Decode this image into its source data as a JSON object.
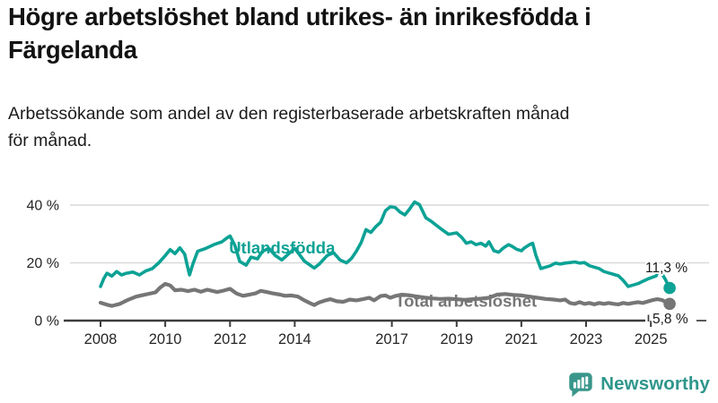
{
  "title": "Högre arbetslöshet bland utrikes- än inrikesfödda i\nFärgelanda",
  "subtitle": "Arbetssökande som andel av den registerbaserade arbetskraften månad\nför månad.",
  "branding": {
    "name": "Newsworthy",
    "icon": "bar-chart-speech-bubble-icon",
    "color": "#2e968b"
  },
  "colors": {
    "foreign_born_line": "#0ca295",
    "total_line": "#767676",
    "grid": "#d9d9d9",
    "axis": "#3d3d3d",
    "tick_text": "#262626",
    "value_text": "#1a1a1a"
  },
  "chart_data": {
    "type": "line",
    "unit": "%",
    "grid": "horizontal-only",
    "legend_position": "inline-labels",
    "x_tick_labels": [
      2008,
      2010,
      2012,
      2014,
      2017,
      2019,
      2021,
      2023,
      2025
    ],
    "y_ticks": [
      {
        "value": 0,
        "label": "0 %"
      },
      {
        "value": 20,
        "label": "20 %"
      },
      {
        "value": 40,
        "label": "40 %"
      }
    ],
    "ylim": [
      0,
      44
    ],
    "xlim": [
      2007.0,
      2026.8
    ],
    "series": [
      {
        "name": "Utlandsfödda",
        "color": "#0ca295",
        "end_value": 11.3,
        "end_value_label": "11,3 %",
        "label_anchor": {
          "x": 2011.97,
          "y": 25.2
        },
        "points": [
          [
            2008.0,
            11.8
          ],
          [
            2008.1,
            14.5
          ],
          [
            2008.2,
            16.4
          ],
          [
            2008.35,
            15.4
          ],
          [
            2008.5,
            17.0
          ],
          [
            2008.65,
            15.8
          ],
          [
            2008.8,
            16.4
          ],
          [
            2009.0,
            16.8
          ],
          [
            2009.2,
            15.8
          ],
          [
            2009.4,
            17.2
          ],
          [
            2009.6,
            18.0
          ],
          [
            2009.8,
            20.0
          ],
          [
            2010.0,
            22.5
          ],
          [
            2010.15,
            24.6
          ],
          [
            2010.3,
            23.2
          ],
          [
            2010.45,
            25.2
          ],
          [
            2010.6,
            23.0
          ],
          [
            2010.68,
            19.0
          ],
          [
            2010.75,
            15.8
          ],
          [
            2010.85,
            19.5
          ],
          [
            2011.0,
            24.0
          ],
          [
            2011.25,
            25.0
          ],
          [
            2011.5,
            26.3
          ],
          [
            2011.75,
            27.3
          ],
          [
            2011.9,
            28.6
          ],
          [
            2012.0,
            29.3
          ],
          [
            2012.15,
            26.0
          ],
          [
            2012.3,
            20.5
          ],
          [
            2012.5,
            19.2
          ],
          [
            2012.65,
            22.0
          ],
          [
            2012.85,
            21.4
          ],
          [
            2013.0,
            24.0
          ],
          [
            2013.2,
            25.0
          ],
          [
            2013.4,
            22.5
          ],
          [
            2013.6,
            21.0
          ],
          [
            2013.8,
            23.0
          ],
          [
            2014.0,
            25.0
          ],
          [
            2014.3,
            20.6
          ],
          [
            2014.6,
            18.2
          ],
          [
            2014.75,
            19.5
          ],
          [
            2015.0,
            22.5
          ],
          [
            2015.2,
            23.5
          ],
          [
            2015.4,
            21.0
          ],
          [
            2015.6,
            20.0
          ],
          [
            2015.75,
            21.5
          ],
          [
            2015.9,
            24.0
          ],
          [
            2016.05,
            27.0
          ],
          [
            2016.2,
            31.5
          ],
          [
            2016.35,
            30.5
          ],
          [
            2016.5,
            32.5
          ],
          [
            2016.65,
            34.0
          ],
          [
            2016.8,
            38.0
          ],
          [
            2016.95,
            39.4
          ],
          [
            2017.1,
            39.2
          ],
          [
            2017.25,
            37.6
          ],
          [
            2017.4,
            36.6
          ],
          [
            2017.55,
            38.7
          ],
          [
            2017.7,
            41.1
          ],
          [
            2017.85,
            40.2
          ],
          [
            2018.05,
            35.6
          ],
          [
            2018.2,
            34.5
          ],
          [
            2018.5,
            31.9
          ],
          [
            2018.75,
            29.9
          ],
          [
            2019.0,
            30.4
          ],
          [
            2019.15,
            28.9
          ],
          [
            2019.3,
            26.8
          ],
          [
            2019.45,
            27.3
          ],
          [
            2019.6,
            26.3
          ],
          [
            2019.75,
            26.8
          ],
          [
            2019.9,
            25.8
          ],
          [
            2020.0,
            27.3
          ],
          [
            2020.15,
            24.2
          ],
          [
            2020.3,
            23.7
          ],
          [
            2020.45,
            25.2
          ],
          [
            2020.6,
            26.3
          ],
          [
            2020.7,
            25.8
          ],
          [
            2020.85,
            24.7
          ],
          [
            2021.0,
            24.2
          ],
          [
            2021.1,
            25.2
          ],
          [
            2021.25,
            26.3
          ],
          [
            2021.35,
            26.8
          ],
          [
            2021.45,
            22.6
          ],
          [
            2021.6,
            18.0
          ],
          [
            2021.75,
            18.5
          ],
          [
            2021.9,
            19.0
          ],
          [
            2022.05,
            19.9
          ],
          [
            2022.2,
            19.6
          ],
          [
            2022.35,
            19.9
          ],
          [
            2022.5,
            20.1
          ],
          [
            2022.65,
            20.3
          ],
          [
            2022.8,
            19.9
          ],
          [
            2022.95,
            20.1
          ],
          [
            2023.1,
            19.0
          ],
          [
            2023.25,
            18.5
          ],
          [
            2023.4,
            18.0
          ],
          [
            2023.55,
            17.0
          ],
          [
            2023.7,
            16.5
          ],
          [
            2023.85,
            16.0
          ],
          [
            2024.0,
            15.5
          ],
          [
            2024.15,
            13.9
          ],
          [
            2024.3,
            11.8
          ],
          [
            2024.45,
            12.3
          ],
          [
            2024.6,
            12.8
          ],
          [
            2024.75,
            13.6
          ],
          [
            2024.9,
            14.4
          ],
          [
            2025.05,
            15.0
          ],
          [
            2025.15,
            15.4
          ],
          [
            2025.3,
            17.0
          ],
          [
            2025.44,
            14.4
          ],
          [
            2025.58,
            11.3
          ]
        ]
      },
      {
        "name": "Total arbetslöshet",
        "color": "#767676",
        "end_value": 5.8,
        "end_value_label": "5,8 %",
        "label_anchor": {
          "x": 2017.1,
          "y": 6.8
        },
        "points": [
          [
            2008.0,
            6.2
          ],
          [
            2008.2,
            5.5
          ],
          [
            2008.35,
            5.1
          ],
          [
            2008.6,
            5.8
          ],
          [
            2008.85,
            7.2
          ],
          [
            2009.1,
            8.3
          ],
          [
            2009.3,
            8.8
          ],
          [
            2009.5,
            9.3
          ],
          [
            2009.7,
            9.8
          ],
          [
            2009.85,
            11.5
          ],
          [
            2010.0,
            12.7
          ],
          [
            2010.15,
            12.2
          ],
          [
            2010.3,
            10.5
          ],
          [
            2010.5,
            10.7
          ],
          [
            2010.7,
            10.2
          ],
          [
            2010.9,
            10.7
          ],
          [
            2011.1,
            10.0
          ],
          [
            2011.3,
            10.7
          ],
          [
            2011.6,
            9.9
          ],
          [
            2011.8,
            10.4
          ],
          [
            2012.0,
            11.0
          ],
          [
            2012.2,
            9.4
          ],
          [
            2012.4,
            8.6
          ],
          [
            2012.6,
            9.0
          ],
          [
            2012.8,
            9.5
          ],
          [
            2012.95,
            10.3
          ],
          [
            2013.1,
            10.0
          ],
          [
            2013.3,
            9.5
          ],
          [
            2013.55,
            9.0
          ],
          [
            2013.7,
            8.6
          ],
          [
            2013.9,
            8.7
          ],
          [
            2014.1,
            8.3
          ],
          [
            2014.3,
            7.0
          ],
          [
            2014.5,
            5.9
          ],
          [
            2014.6,
            5.4
          ],
          [
            2014.75,
            6.3
          ],
          [
            2014.95,
            7.0
          ],
          [
            2015.1,
            7.4
          ],
          [
            2015.3,
            6.7
          ],
          [
            2015.5,
            6.5
          ],
          [
            2015.7,
            7.3
          ],
          [
            2015.9,
            7.0
          ],
          [
            2016.1,
            7.4
          ],
          [
            2016.3,
            7.9
          ],
          [
            2016.45,
            7.0
          ],
          [
            2016.65,
            8.5
          ],
          [
            2016.8,
            8.7
          ],
          [
            2016.95,
            7.9
          ],
          [
            2017.1,
            8.5
          ],
          [
            2017.3,
            9.0
          ],
          [
            2017.5,
            8.8
          ],
          [
            2017.75,
            8.4
          ],
          [
            2018.0,
            8.0
          ],
          [
            2018.25,
            7.7
          ],
          [
            2018.5,
            7.5
          ],
          [
            2018.75,
            7.6
          ],
          [
            2019.0,
            7.4
          ],
          [
            2019.25,
            7.2
          ],
          [
            2019.5,
            7.4
          ],
          [
            2019.75,
            7.6
          ],
          [
            2020.0,
            7.9
          ],
          [
            2020.25,
            9.0
          ],
          [
            2020.5,
            9.2
          ],
          [
            2020.75,
            8.9
          ],
          [
            2021.0,
            8.7
          ],
          [
            2021.25,
            8.3
          ],
          [
            2021.5,
            7.9
          ],
          [
            2021.75,
            7.5
          ],
          [
            2022.0,
            7.3
          ],
          [
            2022.2,
            7.0
          ],
          [
            2022.35,
            7.3
          ],
          [
            2022.5,
            6.1
          ],
          [
            2022.65,
            5.8
          ],
          [
            2022.8,
            6.4
          ],
          [
            2022.95,
            5.8
          ],
          [
            2023.1,
            6.1
          ],
          [
            2023.25,
            5.6
          ],
          [
            2023.4,
            6.1
          ],
          [
            2023.55,
            5.8
          ],
          [
            2023.7,
            6.1
          ],
          [
            2023.85,
            5.8
          ],
          [
            2024.0,
            5.6
          ],
          [
            2024.15,
            6.1
          ],
          [
            2024.3,
            5.8
          ],
          [
            2024.45,
            6.1
          ],
          [
            2024.6,
            6.4
          ],
          [
            2024.75,
            6.1
          ],
          [
            2024.9,
            6.6
          ],
          [
            2025.05,
            7.1
          ],
          [
            2025.2,
            7.4
          ],
          [
            2025.35,
            7.1
          ],
          [
            2025.45,
            6.5
          ],
          [
            2025.58,
            5.8
          ]
        ]
      }
    ]
  }
}
